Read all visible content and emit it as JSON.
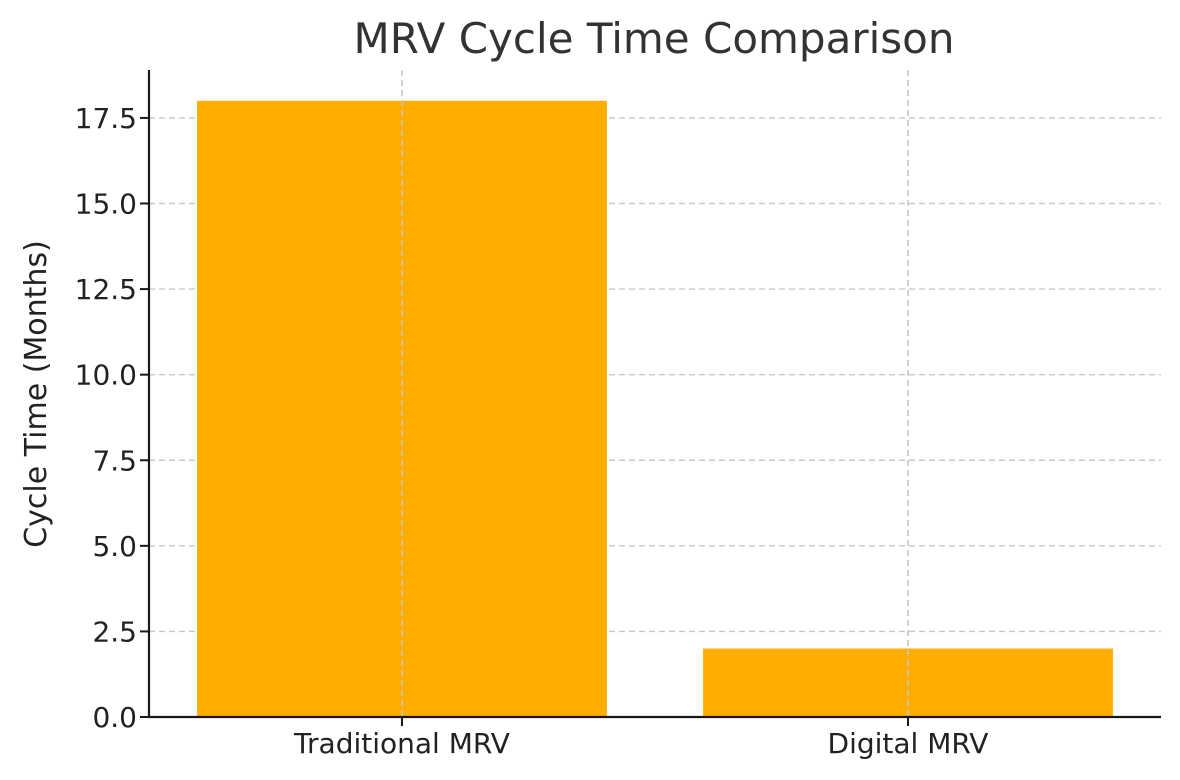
{
  "chart_data": {
    "type": "bar",
    "title": "MRV Cycle Time Comparison",
    "xlabel": "",
    "ylabel": "Cycle Time (Months)",
    "categories": [
      "Traditional MRV",
      "Digital MRV"
    ],
    "values": [
      18,
      2
    ],
    "ylim": [
      0,
      18.9
    ],
    "yticks": [
      0.0,
      2.5,
      5.0,
      7.5,
      10.0,
      12.5,
      15.0,
      17.5
    ],
    "ytick_labels": [
      "0.0",
      "2.5",
      "5.0",
      "7.5",
      "10.0",
      "12.5",
      "15.0",
      "17.5"
    ],
    "bar_color": "#FFAE00",
    "grid": true,
    "grid_style": "dashed",
    "legend": "none"
  }
}
